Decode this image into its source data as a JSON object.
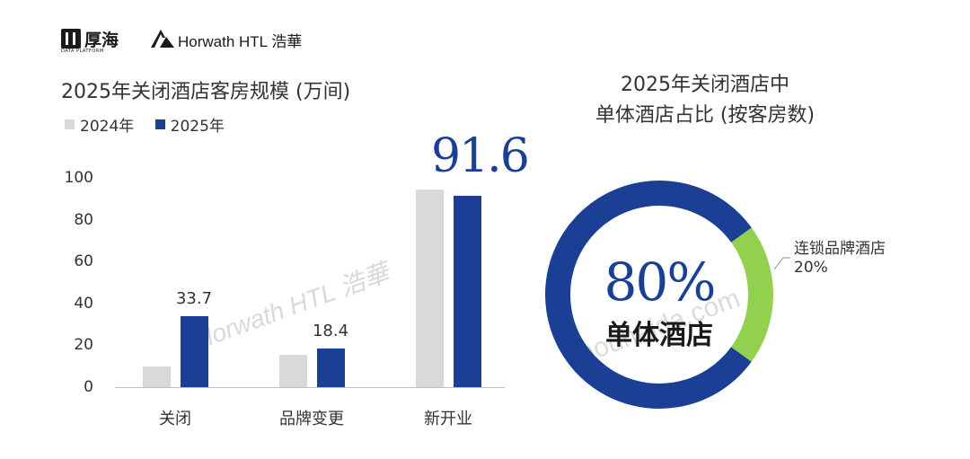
{
  "logos": {
    "houhai_text": "厚海",
    "houhai_sub": "DATA PLATFORM",
    "horwath_text": "Horwath HTL 浩華"
  },
  "watermarks": {
    "left": "Horwath HTL 浩華",
    "right": "houhaida.com"
  },
  "colors": {
    "series_2024": "#d9d9d9",
    "series_2025": "#1b3f94",
    "chain": "#92d050",
    "single": "#1b3f94"
  },
  "chart_data": [
    {
      "type": "bar",
      "title": "2025年关闭酒店客房规模 (万间)",
      "categories": [
        "关闭",
        "品牌变更",
        "新开业"
      ],
      "series": [
        {
          "name": "2024年",
          "values": [
            10,
            15.5,
            94.5
          ]
        },
        {
          "name": "2025年",
          "values": [
            33.7,
            18.4,
            91.6
          ]
        }
      ],
      "data_labels": [
        "33.7",
        "18.4",
        "91.6"
      ],
      "yticks": [
        "0",
        "20",
        "40",
        "60",
        "80",
        "100"
      ],
      "ylim": [
        0,
        100
      ],
      "legend_position": "top-left",
      "grid": false
    },
    {
      "type": "pie",
      "title_line1": "2025年关闭酒店中",
      "title_line2": "单体酒店占比 (按客房数)",
      "labels": [
        "单体酒店",
        "连锁品牌酒店"
      ],
      "values": [
        80,
        20
      ],
      "value_labels": [
        "80%",
        "20%"
      ],
      "donut": true
    }
  ]
}
